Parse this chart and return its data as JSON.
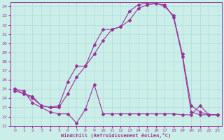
{
  "background_color": "#cceee8",
  "grid_color": "#aadddd",
  "line_color": "#993399",
  "marker_color": "#993399",
  "xlabel": "Windchill (Refroidissement éolien,°C)",
  "xlim": [
    -0.5,
    23.5
  ],
  "ylim": [
    21,
    34.5
  ],
  "yticks": [
    21,
    22,
    23,
    24,
    25,
    26,
    27,
    28,
    29,
    30,
    31,
    32,
    33,
    34
  ],
  "xticks": [
    0,
    1,
    2,
    3,
    4,
    5,
    6,
    7,
    8,
    9,
    10,
    11,
    12,
    13,
    14,
    15,
    16,
    17,
    18,
    19,
    20,
    21,
    22,
    23
  ],
  "curve1_x": [
    0,
    1,
    2,
    3,
    4,
    5,
    6,
    7,
    8,
    9,
    10,
    11,
    12,
    13,
    14,
    15,
    16,
    17,
    18,
    19,
    20,
    21,
    22,
    23
  ],
  "curve1_y": [
    25.0,
    24.5,
    24.0,
    23.2,
    23.0,
    23.2,
    25.8,
    27.5,
    27.5,
    29.8,
    31.5,
    31.5,
    31.8,
    33.5,
    34.2,
    34.4,
    34.4,
    34.0,
    33.0,
    28.8,
    23.2,
    22.5,
    22.2,
    22.2
  ],
  "curve2_x": [
    0,
    1,
    2,
    3,
    4,
    5,
    6,
    7,
    8,
    9,
    10,
    11,
    12,
    13,
    14,
    15,
    16,
    17,
    18,
    19,
    20,
    21,
    22,
    23
  ],
  "curve2_y": [
    24.8,
    24.5,
    24.2,
    23.2,
    23.0,
    23.0,
    24.5,
    26.3,
    27.5,
    28.8,
    30.3,
    31.5,
    31.8,
    32.5,
    33.8,
    34.2,
    34.3,
    34.2,
    32.8,
    28.5,
    22.5,
    22.2,
    22.2,
    22.2
  ],
  "curve3_x": [
    0,
    1,
    2,
    3,
    4,
    5,
    6,
    7,
    8,
    9,
    10,
    11,
    12,
    13,
    14,
    15,
    16,
    17,
    18,
    19,
    20,
    21,
    22,
    23
  ],
  "curve3_y": [
    25.0,
    24.8,
    23.5,
    23.0,
    22.5,
    22.3,
    22.3,
    21.3,
    22.8,
    25.5,
    22.3,
    22.3,
    22.3,
    22.3,
    22.3,
    22.3,
    22.3,
    22.3,
    22.3,
    22.2,
    22.2,
    23.2,
    22.2,
    22.2
  ]
}
